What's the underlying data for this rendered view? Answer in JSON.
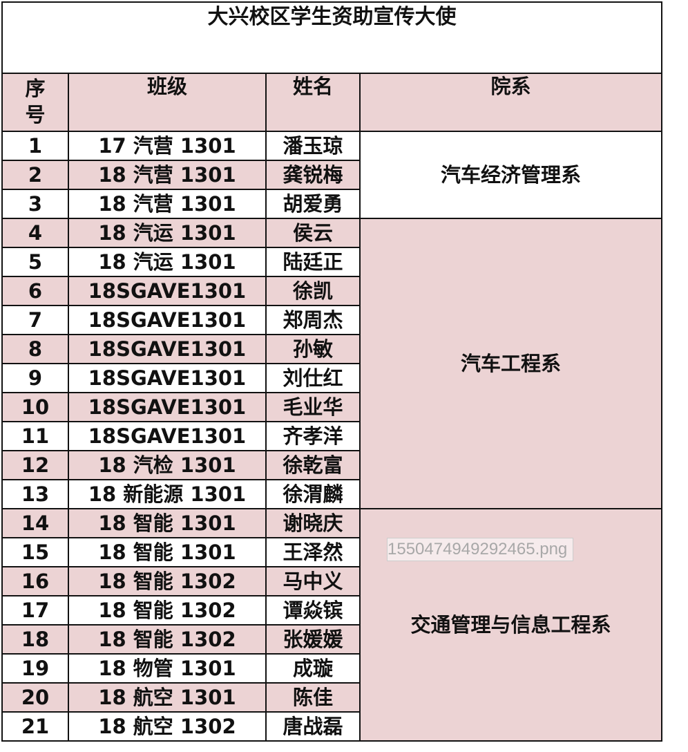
{
  "title": "大兴校区学生资助宣传大使",
  "headers": {
    "seq_line1": "序",
    "seq_line2": "号",
    "class": "班级",
    "name": "姓名",
    "dept": "院系"
  },
  "rows": [
    {
      "seq": "1",
      "class": "17 汽营 1301",
      "name": "潘玉琼"
    },
    {
      "seq": "2",
      "class": "18 汽营 1301",
      "name": "龚锐梅"
    },
    {
      "seq": "3",
      "class": "18 汽营 1301",
      "name": "胡爱勇"
    },
    {
      "seq": "4",
      "class": "18 汽运 1301",
      "name": "侯云"
    },
    {
      "seq": "5",
      "class": "18 汽运 1301",
      "name": "陆廷正"
    },
    {
      "seq": "6",
      "class": "18SGAVE1301",
      "name": "徐凯"
    },
    {
      "seq": "7",
      "class": "18SGAVE1301",
      "name": "郑周杰"
    },
    {
      "seq": "8",
      "class": "18SGAVE1301",
      "name": "孙敏"
    },
    {
      "seq": "9",
      "class": "18SGAVE1301",
      "name": "刘仕红"
    },
    {
      "seq": "10",
      "class": "18SGAVE1301",
      "name": "毛业华"
    },
    {
      "seq": "11",
      "class": "18SGAVE1301",
      "name": "齐孝洋"
    },
    {
      "seq": "12",
      "class": "18 汽检 1301",
      "name": "徐乾富"
    },
    {
      "seq": "13",
      "class": "18 新能源 1301",
      "name": "徐渭麟"
    },
    {
      "seq": "14",
      "class": "18 智能 1301",
      "name": "谢晓庆"
    },
    {
      "seq": "15",
      "class": "18 智能 1301",
      "name": "王泽然"
    },
    {
      "seq": "16",
      "class": "18 智能 1302",
      "name": "马中义"
    },
    {
      "seq": "17",
      "class": "18 智能 1302",
      "name": "谭焱镔"
    },
    {
      "seq": "18",
      "class": "18 智能 1302",
      "name": "张媛媛"
    },
    {
      "seq": "19",
      "class": "18 物管 1301",
      "name": "成璇"
    },
    {
      "seq": "20",
      "class": "18 航空 1301",
      "name": "陈佳"
    },
    {
      "seq": "21",
      "class": "18 航空 1302",
      "name": "唐战磊"
    }
  ],
  "departments": [
    {
      "name": "汽车经济管理系",
      "start": 1,
      "span": 3,
      "fill": "white"
    },
    {
      "name": "汽车工程系",
      "start": 4,
      "span": 10,
      "fill": "pink"
    },
    {
      "name": "交通管理与信息工程系",
      "start": 14,
      "span": 8,
      "fill": "pink"
    }
  ],
  "colors": {
    "pink": "#ecd3d4",
    "border": "#111111"
  },
  "watermark": "1550474949292465.png"
}
